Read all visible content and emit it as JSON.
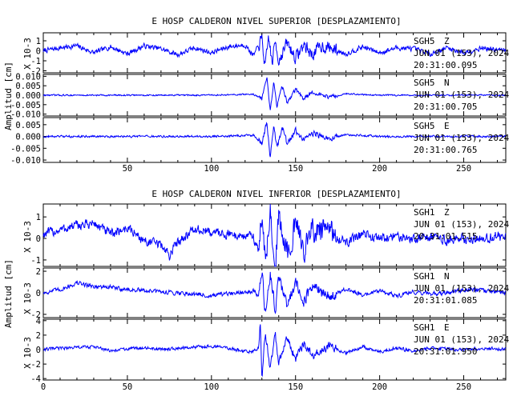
{
  "chart_data": [
    {
      "type": "line",
      "title": "E HOSP CALDERON NIVEL SUPERIOR [DESPLAZAMIENTO]",
      "xlim": [
        0,
        275
      ],
      "xticks": [
        "50",
        "100",
        "150",
        "200",
        "250"
      ],
      "ylabel": "Amplitud [cm]",
      "line_color": "#0000ff",
      "traces": [
        {
          "station": "SGH5",
          "component": "Z",
          "date": "JUN 01 (153), 2024",
          "time": "20:31:00.095",
          "scale_label": "X 10-3",
          "ylim": [
            -2.2,
            1.8
          ],
          "yticks": [
            "1",
            "0",
            "-1",
            "-2"
          ],
          "x": [
            0,
            10,
            20,
            30,
            40,
            50,
            60,
            70,
            80,
            90,
            100,
            110,
            120,
            125,
            130,
            132,
            134,
            136,
            138,
            140,
            145,
            150,
            155,
            160,
            165,
            170,
            180,
            190,
            200,
            210,
            220,
            230,
            240,
            250,
            260,
            270,
            275
          ],
          "y": [
            0.0,
            0.3,
            0.5,
            -0.2,
            0.4,
            -0.3,
            0.5,
            0.2,
            -0.4,
            0.3,
            -0.2,
            0.4,
            0.6,
            -0.5,
            1.2,
            -1.8,
            1.5,
            -1.3,
            1.0,
            -1.0,
            0.8,
            -0.7,
            0.6,
            -0.4,
            0.5,
            0.3,
            -0.3,
            0.4,
            -0.2,
            0.3,
            0.2,
            -0.3,
            0.3,
            -0.2,
            0.3,
            0.1,
            0.0
          ],
          "noise": 0.22
        },
        {
          "station": "SGH5",
          "component": "N",
          "date": "JUN 01 (153), 2024",
          "time": "20:31:00.705",
          "scale_label": "",
          "ylim": [
            -0.011,
            0.011
          ],
          "yticks": [
            "0.010",
            "0.005",
            "0.000",
            "-0.005",
            "-0.010"
          ],
          "x": [
            0,
            50,
            100,
            125,
            130,
            133,
            135,
            137,
            139,
            142,
            145,
            150,
            155,
            160,
            170,
            180,
            200,
            250,
            275
          ],
          "y": [
            0.0,
            0.0,
            0.0,
            0.0005,
            -0.002,
            0.0085,
            -0.009,
            0.007,
            -0.006,
            0.005,
            -0.004,
            0.003,
            -0.002,
            0.0015,
            -0.001,
            0.0008,
            0.0,
            0.0,
            0.0
          ],
          "noise": 0.00035
        },
        {
          "station": "SGH5",
          "component": "E",
          "date": "JUN 01 (153), 2024",
          "time": "20:31:00.765",
          "scale_label": "",
          "ylim": [
            -0.011,
            0.008
          ],
          "yticks": [
            "0.005",
            "0.000",
            "-0.005",
            "-0.010"
          ],
          "x": [
            0,
            50,
            100,
            125,
            130,
            133,
            135,
            137,
            139,
            142,
            145,
            150,
            155,
            160,
            170,
            180,
            200,
            250,
            275
          ],
          "y": [
            0.0,
            0.0,
            0.0,
            0.0005,
            -0.003,
            0.006,
            -0.0095,
            0.005,
            -0.005,
            0.004,
            -0.003,
            0.0025,
            -0.002,
            0.0015,
            -0.001,
            0.0008,
            0.0,
            0.0,
            0.0
          ],
          "noise": 0.0004
        }
      ]
    },
    {
      "type": "line",
      "title": "E HOSP CALDERON NIVEL INFERIOR [DESPLAZAMIENTO]",
      "xlim": [
        0,
        275
      ],
      "xticks": [
        "0",
        "50",
        "100",
        "150",
        "200",
        "250"
      ],
      "ylabel": "Amplitud [cm]",
      "line_color": "#0000ff",
      "traces": [
        {
          "station": "SGH1",
          "component": "Z",
          "date": "JUN 01 (153), 2024",
          "time": "20:31:01.515",
          "scale_label": "X 10-3",
          "ylim": [
            -1.3,
            1.6
          ],
          "yticks": [
            "1",
            "0",
            "-1"
          ],
          "x": [
            0,
            10,
            20,
            30,
            40,
            50,
            60,
            70,
            75,
            80,
            90,
            100,
            110,
            120,
            125,
            128,
            130,
            132,
            135,
            138,
            140,
            145,
            150,
            155,
            160,
            170,
            180,
            190,
            200,
            210,
            220,
            230,
            240,
            250,
            260,
            270,
            275
          ],
          "y": [
            0.2,
            0.4,
            0.6,
            0.7,
            0.2,
            0.5,
            -0.1,
            -0.3,
            -0.8,
            -0.1,
            0.4,
            0.3,
            0.2,
            0.1,
            0.1,
            -0.6,
            1.3,
            -1.3,
            1.2,
            -1.1,
            0.9,
            -0.7,
            0.6,
            -0.5,
            0.4,
            0.3,
            -0.2,
            0.2,
            0.0,
            0.1,
            0.0,
            0.1,
            -0.1,
            0.0,
            0.0,
            0.1,
            0.0
          ],
          "noise": 0.2
        },
        {
          "station": "SGH1",
          "component": "N",
          "date": "JUN 01 (153), 2024",
          "time": "20:31:01.085",
          "scale_label": "X 10-3",
          "ylim": [
            -2.3,
            2.3
          ],
          "yticks": [
            "2",
            "0",
            "-2"
          ],
          "x": [
            0,
            10,
            20,
            30,
            40,
            50,
            60,
            70,
            80,
            90,
            100,
            110,
            120,
            125,
            128,
            130,
            132,
            135,
            138,
            140,
            145,
            150,
            155,
            160,
            170,
            180,
            190,
            200,
            210,
            220,
            230,
            240,
            250,
            260,
            270,
            275
          ],
          "y": [
            0.0,
            0.3,
            0.9,
            0.6,
            0.5,
            0.3,
            0.2,
            0.1,
            0.0,
            -0.1,
            -0.3,
            -0.1,
            0.1,
            0.2,
            -0.3,
            2.0,
            -2.0,
            1.8,
            -1.7,
            1.5,
            -1.2,
            1.0,
            -0.8,
            0.6,
            -0.4,
            0.3,
            -0.2,
            0.2,
            -0.3,
            0.1,
            -0.1,
            0.0,
            0.3,
            0.2,
            0.1,
            0.0
          ],
          "noise": 0.18
        },
        {
          "station": "SGH1",
          "component": "E",
          "date": "JUN 01 (153), 2024",
          "time": "20:31:01.950",
          "scale_label": "X 10-3",
          "ylim": [
            -4.2,
            4.2
          ],
          "yticks": [
            "4",
            "2",
            "0",
            "-2",
            "-4"
          ],
          "x": [
            0,
            10,
            20,
            30,
            40,
            50,
            60,
            70,
            80,
            90,
            100,
            110,
            120,
            125,
            128,
            129,
            130,
            132,
            135,
            138,
            140,
            145,
            150,
            155,
            160,
            170,
            180,
            190,
            200,
            210,
            220,
            230,
            240,
            250,
            260,
            270,
            275
          ],
          "y": [
            0.0,
            0.2,
            0.3,
            0.4,
            -0.2,
            0.1,
            0.3,
            0.0,
            0.2,
            0.3,
            0.5,
            0.2,
            -0.3,
            -0.2,
            0.3,
            4.0,
            -4.0,
            2.5,
            -2.8,
            2.2,
            -2.0,
            1.6,
            -1.3,
            1.0,
            -0.8,
            0.6,
            -0.5,
            0.4,
            -0.3,
            0.2,
            -0.2,
            0.2,
            0.1,
            0.0,
            0.2,
            0.1,
            0.0
          ],
          "noise": 0.2
        }
      ]
    }
  ]
}
